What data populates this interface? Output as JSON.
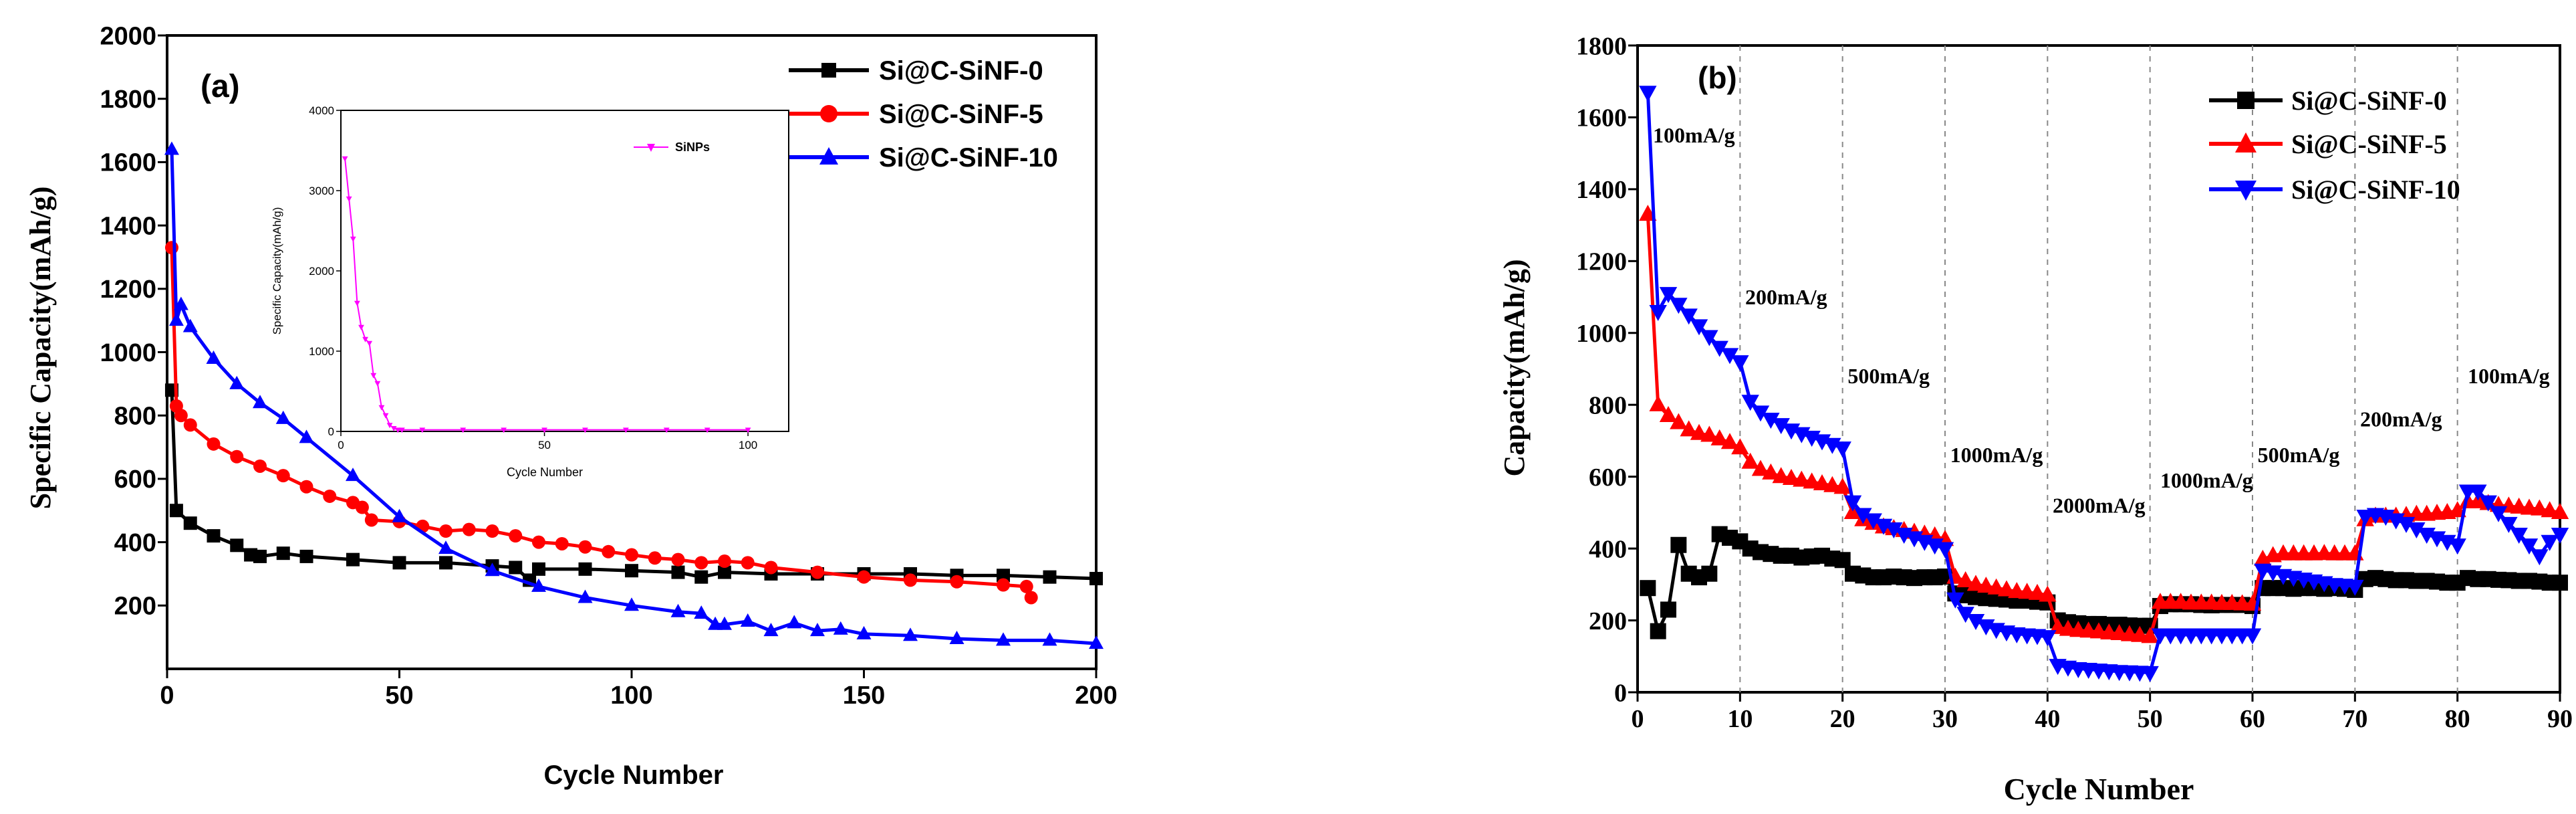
{
  "chart_data": [
    {
      "id": "a",
      "type": "scatter",
      "panel_label": "(a)",
      "xlabel": "Cycle Number",
      "ylabel": "Specific Capacity(mAh/g)",
      "xlim": [
        0,
        200
      ],
      "ylim": [
        0,
        2000
      ],
      "x_ticks": [
        "0",
        "50",
        "100",
        "150",
        "200"
      ],
      "y_ticks": [
        "200",
        "400",
        "600",
        "800",
        "1000",
        "1200",
        "1400",
        "1600",
        "1800",
        "2000"
      ],
      "legend_position": "top-right",
      "series": [
        {
          "name": "Si@C-SiNF-0",
          "color": "#000000",
          "marker": "square",
          "x": [
            1,
            2,
            5,
            10,
            15,
            18,
            20,
            25,
            30,
            40,
            50,
            60,
            70,
            75,
            78,
            80,
            90,
            100,
            110,
            115,
            120,
            130,
            140,
            150,
            160,
            170,
            180,
            190,
            200
          ],
          "y": [
            880,
            500,
            460,
            420,
            390,
            360,
            355,
            365,
            355,
            345,
            335,
            335,
            325,
            320,
            280,
            315,
            315,
            310,
            305,
            290,
            305,
            300,
            300,
            300,
            300,
            295,
            295,
            290,
            285
          ]
        },
        {
          "name": "Si@C-SiNF-5",
          "color": "#ff0000",
          "marker": "circle",
          "x": [
            1,
            2,
            3,
            5,
            10,
            15,
            20,
            25,
            30,
            35,
            40,
            42,
            44,
            50,
            55,
            60,
            65,
            70,
            75,
            80,
            85,
            90,
            95,
            100,
            105,
            110,
            115,
            120,
            125,
            130,
            140,
            150,
            160,
            170,
            180,
            185,
            186
          ],
          "y": [
            1330,
            830,
            800,
            770,
            710,
            670,
            640,
            610,
            575,
            545,
            525,
            510,
            470,
            465,
            450,
            435,
            440,
            435,
            420,
            400,
            395,
            385,
            370,
            360,
            350,
            345,
            335,
            340,
            335,
            320,
            305,
            290,
            280,
            275,
            265,
            260,
            225
          ]
        },
        {
          "name": "Si@C-SiNF-10",
          "color": "#0000ff",
          "marker": "triangle-up",
          "x": [
            1,
            2,
            3,
            5,
            10,
            15,
            20,
            25,
            30,
            40,
            50,
            60,
            70,
            80,
            90,
            100,
            110,
            115,
            118,
            120,
            125,
            130,
            135,
            140,
            145,
            150,
            160,
            170,
            180,
            190,
            200
          ],
          "y": [
            1640,
            1100,
            1150,
            1080,
            980,
            900,
            840,
            790,
            730,
            610,
            480,
            380,
            310,
            260,
            225,
            200,
            180,
            175,
            140,
            140,
            150,
            120,
            145,
            120,
            125,
            110,
            105,
            95,
            90,
            90,
            80
          ]
        }
      ],
      "inset": {
        "type": "line",
        "xlabel": "Cycle Number",
        "ylabel": "Specific Capacity(mAh/g)",
        "xlim": [
          0,
          110
        ],
        "ylim": [
          0,
          4000
        ],
        "x_ticks": [
          "0",
          "50",
          "100"
        ],
        "y_ticks": [
          "0",
          "1000",
          "2000",
          "3000",
          "4000"
        ],
        "series": [
          {
            "name": "SiNPs",
            "color": "#ff00ff",
            "x": [
              1,
              2,
              3,
              4,
              5,
              6,
              7,
              8,
              9,
              10,
              11,
              12,
              13,
              14,
              15,
              20,
              30,
              40,
              50,
              60,
              70,
              80,
              90,
              100
            ],
            "y": [
              3400,
              2900,
              2400,
              1600,
              1300,
              1150,
              1100,
              700,
              600,
              300,
              200,
              80,
              40,
              20,
              20,
              20,
              20,
              20,
              20,
              20,
              20,
              20,
              20,
              20
            ]
          }
        ]
      }
    },
    {
      "id": "b",
      "type": "scatter",
      "panel_label": "(b)",
      "xlabel": "Cycle Number",
      "ylabel": "Capacity(mAh/g)",
      "xlim": [
        0,
        90
      ],
      "ylim": [
        0,
        1800
      ],
      "x_ticks": [
        "0",
        "10",
        "20",
        "30",
        "40",
        "50",
        "60",
        "70",
        "80",
        "90"
      ],
      "y_ticks": [
        "0",
        "200",
        "400",
        "600",
        "800",
        "1000",
        "1200",
        "1400",
        "1600",
        "1800"
      ],
      "vlines": [
        10,
        20,
        30,
        40,
        50,
        60,
        70,
        80
      ],
      "legend_position": "top-right",
      "annotations": [
        {
          "text": "100mA/g",
          "x": 1.5,
          "y": 1530
        },
        {
          "text": "200mA/g",
          "x": 10.5,
          "y": 1080
        },
        {
          "text": "500mA/g",
          "x": 20.5,
          "y": 860
        },
        {
          "text": "1000mA/g",
          "x": 30.5,
          "y": 640
        },
        {
          "text": "2000mA/g",
          "x": 40.5,
          "y": 500
        },
        {
          "text": "1000mA/g",
          "x": 51,
          "y": 570
        },
        {
          "text": "500mA/g",
          "x": 60.5,
          "y": 640
        },
        {
          "text": "200mA/g",
          "x": 70.5,
          "y": 740
        },
        {
          "text": "100mA/g",
          "x": 81,
          "y": 860
        }
      ],
      "series": [
        {
          "name": "Si@C-SiNF-0",
          "color": "#000000",
          "marker": "square",
          "x": [
            1,
            2,
            3,
            4,
            5,
            6,
            7,
            8,
            9,
            10,
            11,
            12,
            13,
            14,
            15,
            16,
            17,
            18,
            19,
            20,
            21,
            22,
            23,
            24,
            25,
            26,
            27,
            28,
            29,
            30,
            31,
            32,
            33,
            34,
            35,
            36,
            37,
            38,
            39,
            40,
            41,
            42,
            43,
            44,
            45,
            46,
            47,
            48,
            49,
            50,
            51,
            52,
            53,
            54,
            55,
            56,
            57,
            58,
            59,
            60,
            61,
            62,
            63,
            64,
            65,
            66,
            67,
            68,
            69,
            70,
            71,
            72,
            73,
            74,
            75,
            76,
            77,
            78,
            79,
            80,
            81,
            82,
            83,
            84,
            85,
            86,
            87,
            88,
            89,
            90
          ],
          "y": [
            290,
            170,
            230,
            410,
            330,
            320,
            330,
            440,
            430,
            420,
            400,
            390,
            385,
            380,
            380,
            375,
            378,
            380,
            372,
            368,
            330,
            325,
            320,
            320,
            322,
            320,
            318,
            320,
            320,
            322,
            275,
            270,
            265,
            262,
            260,
            258,
            255,
            255,
            252,
            250,
            200,
            195,
            192,
            190,
            190,
            188,
            188,
            186,
            185,
            185,
            240,
            245,
            245,
            245,
            243,
            242,
            243,
            243,
            243,
            240,
            290,
            290,
            290,
            288,
            290,
            290,
            288,
            290,
            288,
            285,
            315,
            318,
            315,
            312,
            312,
            310,
            310,
            308,
            305,
            305,
            318,
            315,
            315,
            313,
            312,
            310,
            310,
            308,
            305,
            305
          ]
        },
        {
          "name": "Si@C-SiNF-5",
          "color": "#ff0000",
          "marker": "triangle-up",
          "x": [
            1,
            2,
            3,
            4,
            5,
            6,
            7,
            8,
            9,
            10,
            11,
            12,
            13,
            14,
            15,
            16,
            17,
            18,
            19,
            20,
            21,
            22,
            23,
            24,
            25,
            26,
            27,
            28,
            29,
            30,
            31,
            32,
            33,
            34,
            35,
            36,
            37,
            38,
            39,
            40,
            41,
            42,
            43,
            44,
            45,
            46,
            47,
            48,
            49,
            50,
            51,
            52,
            53,
            54,
            55,
            56,
            57,
            58,
            59,
            60,
            61,
            62,
            63,
            64,
            65,
            66,
            67,
            68,
            69,
            70,
            71,
            72,
            73,
            74,
            75,
            76,
            77,
            78,
            79,
            80,
            81,
            82,
            83,
            84,
            85,
            86,
            87,
            88,
            89,
            90
          ],
          "y": [
            1330,
            800,
            770,
            750,
            730,
            720,
            715,
            705,
            695,
            680,
            640,
            620,
            610,
            600,
            595,
            590,
            585,
            580,
            575,
            570,
            500,
            480,
            470,
            460,
            455,
            450,
            445,
            440,
            435,
            425,
            320,
            310,
            300,
            295,
            290,
            285,
            280,
            278,
            275,
            270,
            180,
            175,
            172,
            170,
            168,
            165,
            163,
            160,
            158,
            155,
            250,
            250,
            250,
            248,
            248,
            248,
            247,
            247,
            246,
            245,
            370,
            380,
            385,
            385,
            385,
            385,
            386,
            385,
            385,
            385,
            480,
            490,
            490,
            490,
            492,
            495,
            495,
            498,
            500,
            505,
            530,
            530,
            525,
            520,
            518,
            515,
            512,
            510,
            505,
            500
          ]
        },
        {
          "name": "Si@C-SiNF-10",
          "color": "#0000ff",
          "marker": "triangle-down",
          "x": [
            1,
            2,
            3,
            4,
            5,
            6,
            7,
            8,
            9,
            10,
            11,
            12,
            13,
            14,
            15,
            16,
            17,
            18,
            19,
            20,
            21,
            22,
            23,
            24,
            25,
            26,
            27,
            28,
            29,
            30,
            31,
            32,
            33,
            34,
            35,
            36,
            37,
            38,
            39,
            40,
            41,
            42,
            43,
            44,
            45,
            46,
            47,
            48,
            49,
            50,
            51,
            52,
            53,
            54,
            55,
            56,
            57,
            58,
            59,
            60,
            61,
            62,
            63,
            64,
            65,
            66,
            67,
            68,
            69,
            70,
            71,
            72,
            73,
            74,
            75,
            76,
            77,
            78,
            79,
            80,
            81,
            82,
            83,
            84,
            85,
            86,
            87,
            88,
            89,
            90
          ],
          "y": [
            1670,
            1060,
            1110,
            1080,
            1050,
            1020,
            990,
            960,
            940,
            920,
            810,
            780,
            760,
            745,
            730,
            720,
            710,
            700,
            690,
            680,
            530,
            495,
            480,
            465,
            455,
            440,
            430,
            420,
            410,
            400,
            260,
            220,
            200,
            185,
            175,
            168,
            163,
            160,
            158,
            155,
            75,
            70,
            66,
            64,
            62,
            60,
            58,
            57,
            56,
            55,
            160,
            160,
            160,
            160,
            160,
            160,
            160,
            160,
            160,
            160,
            340,
            335,
            325,
            320,
            315,
            310,
            305,
            300,
            298,
            295,
            490,
            495,
            490,
            480,
            470,
            455,
            440,
            430,
            420,
            410,
            560,
            560,
            530,
            500,
            470,
            440,
            410,
            380,
            420,
            440
          ]
        }
      ]
    }
  ]
}
